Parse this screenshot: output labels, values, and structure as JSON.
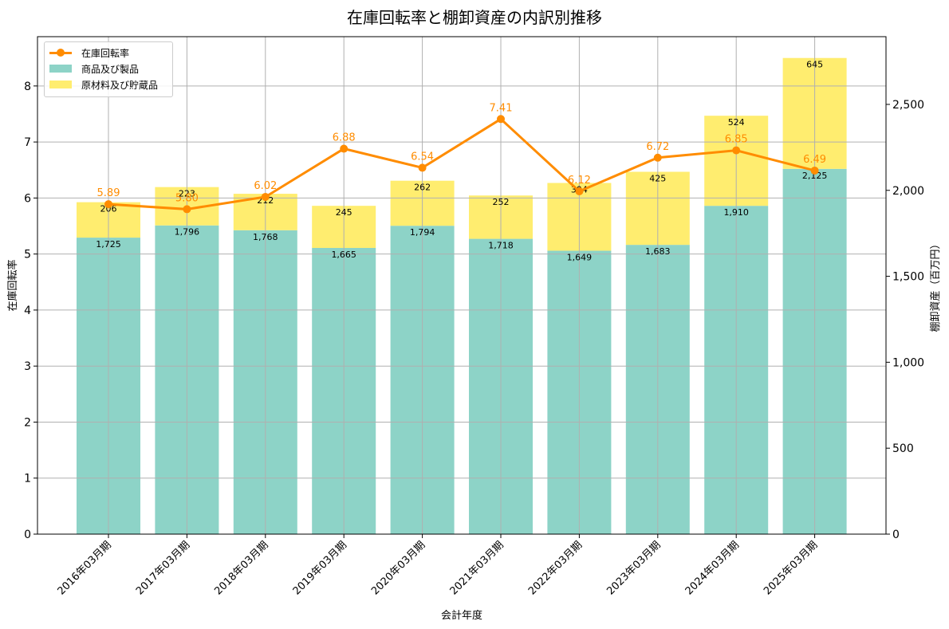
{
  "title": "在庫回転率と棚卸資産の内訳別推移",
  "colors": {
    "products": "#8dd3c7",
    "raw_materials": "#ffed6f",
    "turnover_line": "#ff8c00",
    "grid": "#b0b0b0"
  },
  "legend": {
    "line": "在庫回転率",
    "bar1": "商品及び製品",
    "bar2": "原材料及び貯蔵品"
  },
  "axes": {
    "xlabel": "会計年度",
    "ylabel_left": "在庫回転率",
    "ylabel_right": "棚卸資産（百万円）",
    "left_ticks": [
      "0",
      "1",
      "2",
      "3",
      "4",
      "5",
      "6",
      "7",
      "8"
    ],
    "right_ticks": [
      "0",
      "500",
      "1,000",
      "1,500",
      "2,000",
      "2,500"
    ]
  },
  "chart_data": {
    "type": "bar",
    "title": "在庫回転率と棚卸資産の内訳別推移",
    "xlabel": "会計年度",
    "ylabel": "在庫回転率",
    "ylabel_right": "棚卸資産（百万円）",
    "categories": [
      "2016年03月期",
      "2017年03月期",
      "2018年03月期",
      "2019年03月期",
      "2020年03月期",
      "2021年03月期",
      "2022年03月期",
      "2023年03月期",
      "2024年03月期",
      "2025年03月期"
    ],
    "series": [
      {
        "name": "商品及び製品",
        "type": "stacked_bar",
        "axis": "right",
        "values": [
          1725,
          1796,
          1768,
          1665,
          1794,
          1718,
          1649,
          1683,
          1910,
          2125
        ]
      },
      {
        "name": "原材料及び貯蔵品",
        "type": "stacked_bar",
        "axis": "right",
        "values": [
          206,
          223,
          212,
          245,
          262,
          252,
          394,
          425,
          524,
          645
        ]
      },
      {
        "name": "在庫回転率",
        "type": "line",
        "axis": "left",
        "values": [
          5.89,
          5.8,
          6.02,
          6.88,
          6.54,
          7.41,
          6.12,
          6.72,
          6.85,
          6.49
        ]
      }
    ],
    "ylim": [
      0,
      8.88
    ],
    "ylim_right": [
      0,
      2894
    ],
    "grid": true,
    "legend_position": "upper left"
  }
}
